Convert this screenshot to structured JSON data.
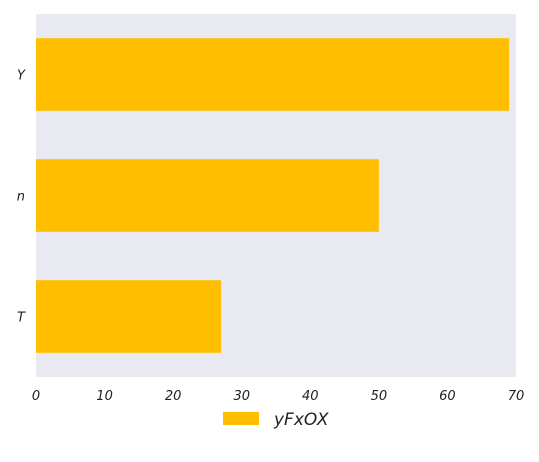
{
  "chart_data": {
    "type": "bar",
    "orientation": "horizontal",
    "categories": [
      "Y",
      "n",
      "T"
    ],
    "series": [
      {
        "name": "yFxOX",
        "values": [
          69,
          50,
          27
        ],
        "color": "#FFBF00"
      }
    ],
    "xlim": [
      0,
      70
    ],
    "xticks": [
      "0",
      "10",
      "20",
      "30",
      "40",
      "50",
      "60",
      "70"
    ],
    "title": "",
    "xlabel": "",
    "ylabel": "",
    "grid": false,
    "background_color": "#E9E9F2",
    "legend_position": "bottom-center"
  }
}
